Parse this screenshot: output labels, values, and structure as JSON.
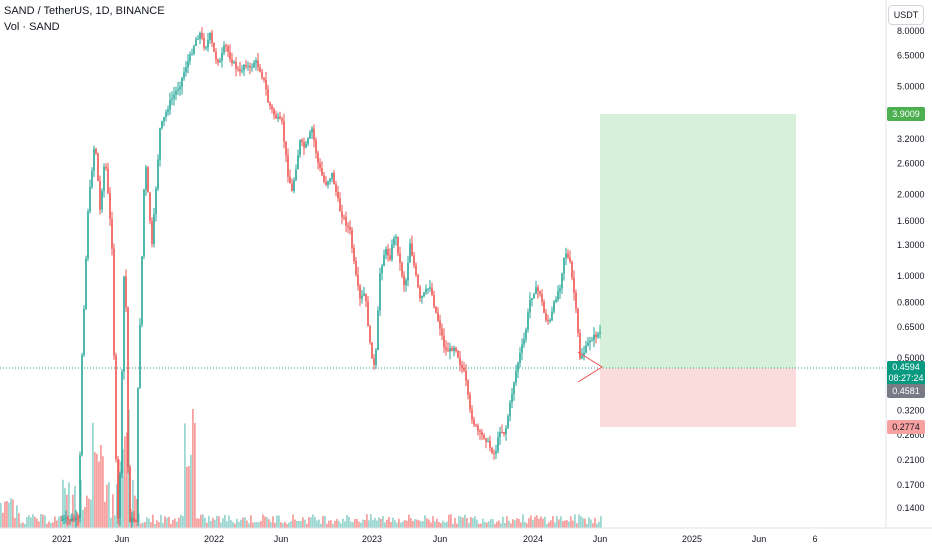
{
  "header": {
    "symbol": "SAND / TetherUS, 1D, BINANCE",
    "volume_label": "Vol · SAND"
  },
  "currency_button": "USDT",
  "price_axis": {
    "ticks": [
      "8.0000",
      "6.5000",
      "5.0000",
      "3.2000",
      "2.6000",
      "2.0000",
      "1.6000",
      "1.3000",
      "1.0000",
      "0.8000",
      "0.6500",
      "0.5000",
      "0.3200",
      "0.2600",
      "0.2100",
      "0.1700",
      "0.1400"
    ]
  },
  "time_axis": {
    "ticks": [
      "2021",
      "Jun",
      "2022",
      "Jun",
      "2023",
      "Jun",
      "2024",
      "Jun",
      "2025",
      "Jun",
      "6"
    ]
  },
  "price_labels": {
    "target": "3.9009",
    "current_price": "0.4594",
    "countdown": "08:27:24",
    "entry": "0.4581",
    "stop": "0.2774"
  },
  "colors": {
    "up": "#26a69a",
    "down": "#ef5350",
    "profit_zone": "#d7f0d9",
    "loss_zone": "#fbdcdc",
    "current_price": "#089981",
    "target_label": "#4caf50",
    "stop_label": "#f7a1a1",
    "entry_label": "#787b86"
  }
}
